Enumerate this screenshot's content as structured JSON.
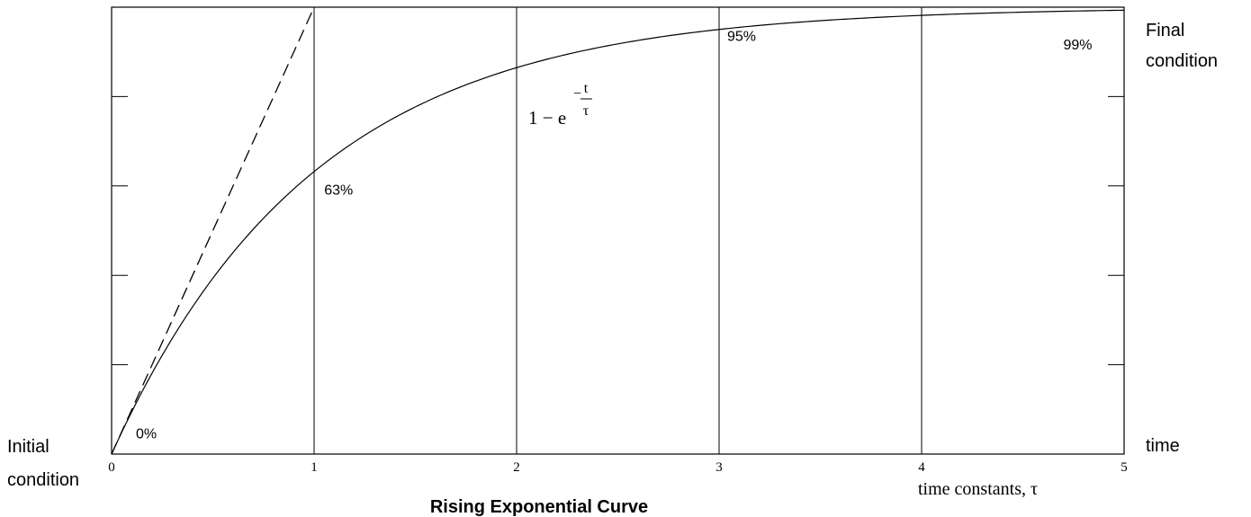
{
  "chart_data": {
    "type": "line",
    "title": "Rising Exponential Curve",
    "xlabel": "time constants, τ",
    "x_end_label": "time",
    "left_labels": [
      "Initial",
      "condition"
    ],
    "right_labels": [
      "Final",
      "condition"
    ],
    "xlim": [
      0,
      5
    ],
    "ylim": [
      0,
      1
    ],
    "x_ticks": [
      "0",
      "1",
      "2",
      "3",
      "4",
      "5"
    ],
    "x_gridlines": [
      1,
      2,
      3,
      4
    ],
    "y_tick_marks": [
      0.2,
      0.4,
      0.6,
      0.8
    ],
    "formula": {
      "lead": "1 − e",
      "exp_sign": "−",
      "exp_num": "t",
      "exp_den": "τ"
    },
    "series": [
      {
        "style": "solid",
        "function": "1-exp(-t)",
        "x": [
          0,
          0.5,
          1,
          1.5,
          2,
          2.5,
          3,
          3.5,
          4,
          4.5,
          5
        ],
        "y": [
          0,
          0.393,
          0.632,
          0.777,
          0.865,
          0.918,
          0.95,
          0.97,
          0.982,
          0.989,
          0.993
        ]
      },
      {
        "style": "dashed",
        "function": "initial slope tangent",
        "x": [
          0,
          1
        ],
        "y": [
          0,
          1
        ]
      }
    ],
    "annotations": [
      {
        "text": "0%",
        "x": 0.12,
        "y": 0.035
      },
      {
        "text": "63%",
        "x": 1.05,
        "y": 0.58
      },
      {
        "text": "95%",
        "x": 3.04,
        "y": 0.925
      },
      {
        "text": "99%",
        "x": 4.7,
        "y": 0.905
      }
    ]
  }
}
